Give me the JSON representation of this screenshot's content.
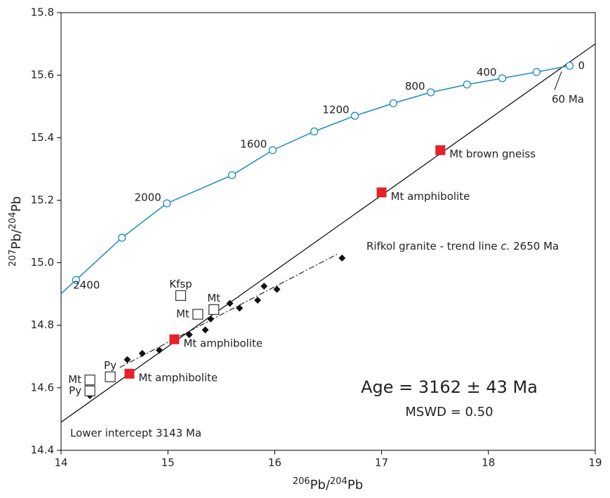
{
  "chart_data": {
    "type": "scatter",
    "xlim": [
      14,
      19
    ],
    "ylim": [
      14.4,
      15.8
    ],
    "xticks": [
      14,
      15,
      16,
      17,
      18,
      19
    ],
    "yticks": [
      14.4,
      14.6,
      14.8,
      {
        "value": 15,
        "label": "15.0"
      },
      15.2,
      15.4,
      15.6,
      15.8
    ],
    "x_label_parts": [
      "206",
      "Pb/",
      "204",
      "Pb"
    ],
    "y_label_parts": [
      "207",
      "Pb/",
      "204",
      "Pb"
    ],
    "growth_curve": {
      "color": "#1a8ac0",
      "x": [
        14.14,
        14.57,
        14.99,
        15.6,
        15.98,
        16.37,
        16.75,
        17.11,
        17.46,
        17.8,
        18.13,
        18.45,
        18.76
      ],
      "y": [
        14.945,
        15.08,
        15.19,
        15.28,
        15.36,
        15.42,
        15.47,
        15.51,
        15.545,
        15.57,
        15.59,
        15.61,
        15.63
      ],
      "age_labels": [
        2400,
        2000,
        1600,
        1200,
        800,
        400,
        0
      ]
    },
    "isochron": {
      "color": "#000000",
      "x": [
        14,
        19
      ],
      "y": [
        14.49,
        15.7
      ]
    },
    "trend_line": {
      "color": "#000000",
      "x": [
        14.55,
        16.6
      ],
      "y": [
        14.665,
        15.03
      ]
    },
    "red_squares": {
      "color": "#e8202a",
      "x": [
        14.64,
        15.06,
        17.0,
        17.55
      ],
      "y": [
        14.645,
        14.755,
        15.225,
        15.36
      ],
      "labels": [
        "Mt amphibolite",
        "Mt amphibolite",
        "Mt amphibolite",
        "Mt brown gneiss"
      ]
    },
    "open_squares": {
      "color": "#333333",
      "x": [
        15.12,
        15.28,
        15.43,
        14.46,
        14.27,
        14.27
      ],
      "y": [
        14.895,
        14.835,
        14.85,
        14.635,
        14.625,
        14.59
      ],
      "labels": [
        "Kfsp",
        "Mt",
        "Mt",
        "Py",
        "Mt",
        "Py"
      ]
    },
    "diamonds": {
      "color": "#111111",
      "x": [
        14.27,
        14.62,
        14.76,
        14.92,
        15.2,
        15.35,
        15.4,
        15.58,
        15.67,
        15.84,
        15.9,
        16.02,
        16.63
      ],
      "y": [
        14.575,
        14.69,
        14.71,
        14.72,
        14.77,
        14.785,
        14.82,
        14.87,
        14.855,
        14.88,
        14.925,
        14.915,
        15.015
      ]
    },
    "age_text": "Age = 3162 ± 43 Ma",
    "mswd_text": "MSWD = 0.50",
    "lower_intercept": "Lower intercept 3143 Ma",
    "sixty_ma": "60 Ma",
    "rifkol_parts": [
      "Rifkol granite - trend line ",
      "c.",
      " 2650 Ma"
    ]
  }
}
